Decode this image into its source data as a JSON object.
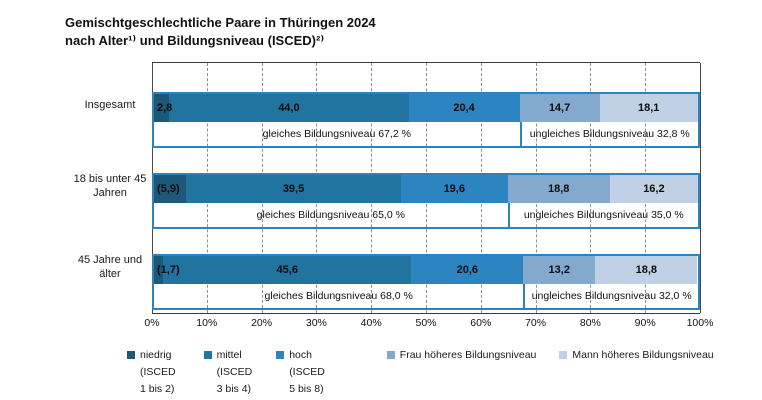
{
  "title": {
    "line1": "Gemischtgeschlechtliche Paare in Thüringen 2024",
    "line2": "nach Alter¹⁾ und Bildungsniveau (ISCED)²⁾"
  },
  "chart_data": {
    "type": "bar",
    "orientation": "horizontal",
    "stacked": true,
    "title": "Gemischtgeschlechtliche Paare in Thüringen 2024 nach Alter und Bildungsniveau (ISCED)",
    "categories": [
      "Insgesamt",
      "18 bis unter 45 Jahren",
      "45 Jahre und älter"
    ],
    "series": [
      {
        "name": "niedrig (ISCED 1 bis 2)",
        "color": "#1d5878",
        "values": [
          2.8,
          5.9,
          1.7
        ]
      },
      {
        "name": "mittel (ISCED 3 bis 4)",
        "color": "#2173a0",
        "values": [
          44.0,
          39.5,
          45.6
        ]
      },
      {
        "name": "hoch (ISCED 5 bis 8)",
        "color": "#2c85c0",
        "values": [
          20.4,
          19.6,
          20.6
        ]
      },
      {
        "name": "Frau höheres Bildungsniveau",
        "color": "#84a9ce",
        "values": [
          14.7,
          18.8,
          13.2
        ]
      },
      {
        "name": "Mann höheres Bildungsniveau",
        "color": "#c0d1e6",
        "values": [
          18.1,
          16.2,
          18.8
        ]
      }
    ],
    "xlim": [
      0,
      100
    ],
    "grid": "dashed-vertical",
    "legend_position": "bottom",
    "x_ticks": [
      {
        "label": "0%",
        "pos": 0
      },
      {
        "label": "10%",
        "pos": 10
      },
      {
        "label": "20%",
        "pos": 20
      },
      {
        "label": "30%",
        "pos": 30
      },
      {
        "label": "40%",
        "pos": 40
      },
      {
        "label": "50%",
        "pos": 50
      },
      {
        "label": "60%",
        "pos": 60
      },
      {
        "label": "70%",
        "pos": 70
      },
      {
        "label": "80%",
        "pos": 80
      },
      {
        "label": "90%",
        "pos": 90
      },
      {
        "label": "100%",
        "pos": 100
      }
    ],
    "rows": [
      {
        "label": "Insgesamt",
        "segments": [
          {
            "label": "2,8",
            "pct": 2.8
          },
          {
            "label": "44,0",
            "pct": 44.0
          },
          {
            "label": "20,4",
            "pct": 20.4
          },
          {
            "label": "14,7",
            "pct": 14.7
          },
          {
            "label": "18,1",
            "pct": 18.1
          }
        ],
        "gleiches": {
          "text": "gleiches Bildungsniveau 67,2 %",
          "pct": 67.2
        },
        "ungleiches": {
          "text": "ungleiches Bildungsniveau 32,8 %",
          "pct": 32.8
        }
      },
      {
        "label": "18 bis unter 45\nJahren",
        "segments": [
          {
            "label": "(5,9)",
            "pct": 5.9
          },
          {
            "label": "39,5",
            "pct": 39.5
          },
          {
            "label": "19,6",
            "pct": 19.6
          },
          {
            "label": "18,8",
            "pct": 18.8
          },
          {
            "label": "16,2",
            "pct": 16.2
          }
        ],
        "gleiches": {
          "text": "gleiches Bildungsniveau 65,0 %",
          "pct": 65.0
        },
        "ungleiches": {
          "text": "ungleiches Bildungsniveau 35,0 %",
          "pct": 35.0
        }
      },
      {
        "label": "45 Jahre und\nälter",
        "segments": [
          {
            "label": "(1,7)",
            "pct": 1.7
          },
          {
            "label": "45,6",
            "pct": 45.6
          },
          {
            "label": "20,6",
            "pct": 20.6
          },
          {
            "label": "13,2",
            "pct": 13.2
          },
          {
            "label": "18,8",
            "pct": 18.8
          }
        ],
        "gleiches": {
          "text": "gleiches Bildungsniveau 68,0 %",
          "pct": 67.9
        },
        "ungleiches": {
          "text": "ungleiches Bildungsniveau 32,0 %",
          "pct": 32.0
        }
      }
    ],
    "legend": [
      {
        "label": "niedrig\n(ISCED\n1 bis 2)",
        "color": "#1d5878"
      },
      {
        "label": "mittel\n(ISCED\n3 bis 4)",
        "color": "#2173a0"
      },
      {
        "label": "hoch\n(ISCED\n5 bis 8)",
        "color": "#2c85c0"
      },
      {
        "label": "Frau höheres Bildungsniveau",
        "color": "#84a9ce"
      },
      {
        "label": "Mann höheres Bildungsniveau",
        "color": "#c0d1e6"
      }
    ],
    "colors": {
      "box_border": "#2d83be",
      "grid_line": "#8f8f8f",
      "axis_line": "#3c3c3c"
    }
  }
}
